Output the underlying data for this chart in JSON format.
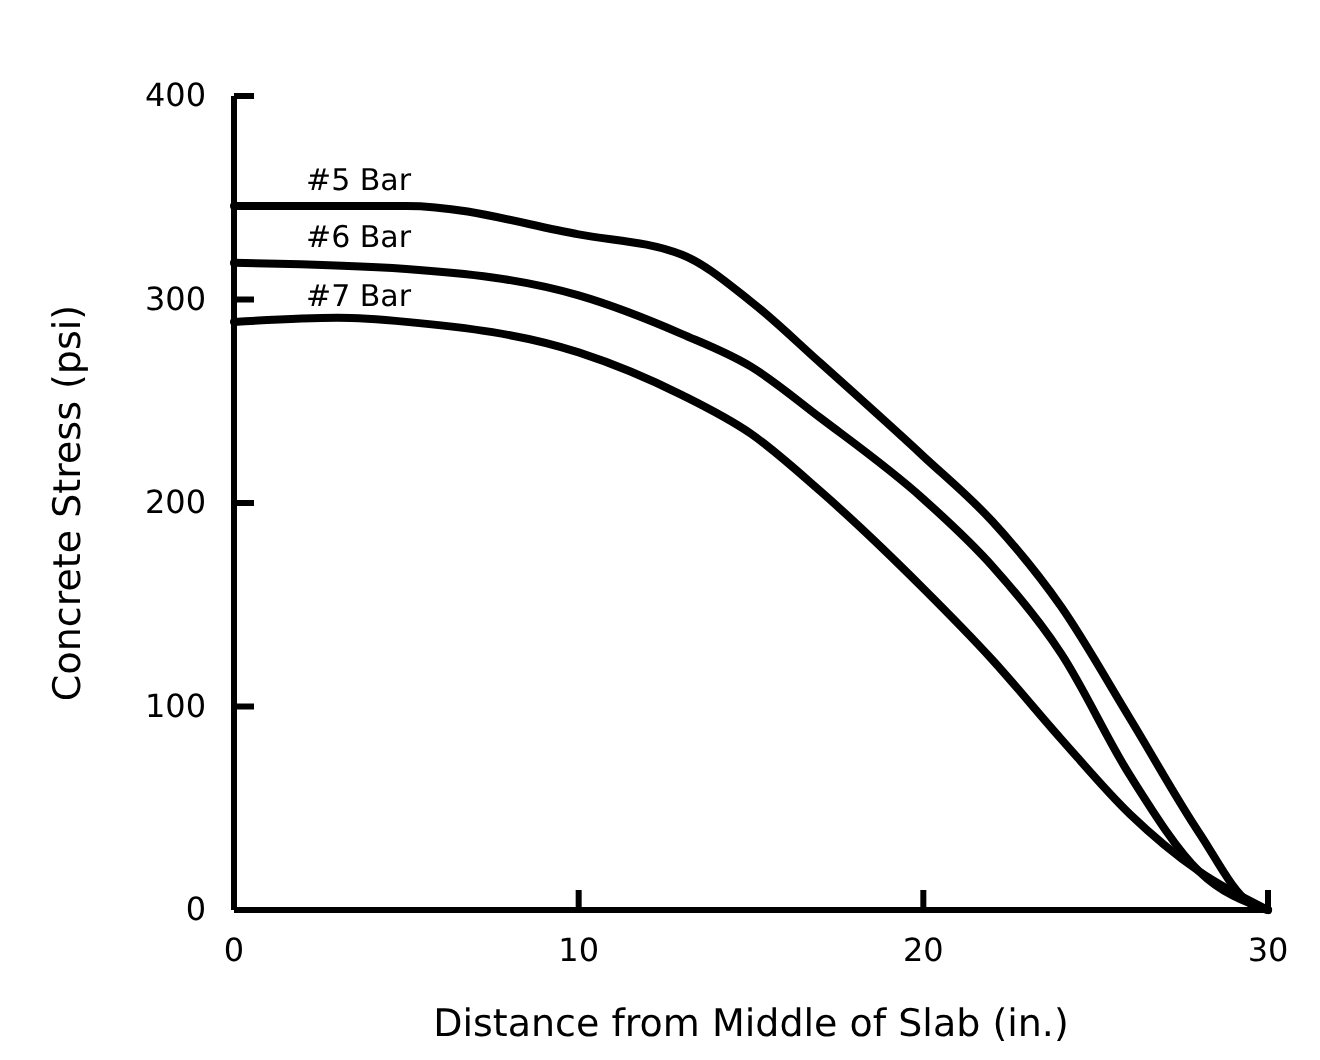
{
  "chart_data": {
    "type": "line",
    "xlabel": "Distance from Middle of Slab (in.)",
    "ylabel": "Concrete Stress (psi)",
    "xlim": [
      0,
      30
    ],
    "xticks": [
      0,
      10,
      20,
      30
    ],
    "ylim": [
      0,
      400
    ],
    "yticks": [
      0,
      100,
      200,
      300,
      400
    ],
    "grid": false,
    "legend": false,
    "marker": "none",
    "line_style": "solid",
    "series": [
      {
        "name": "#5 Bar",
        "color": "#000000",
        "x": [
          0,
          5,
          10,
          13,
          15,
          17,
          20,
          22,
          24,
          26,
          28,
          29.5,
          30
        ],
        "values": [
          346,
          346,
          332,
          322,
          299,
          269,
          223,
          191,
          149,
          94,
          38,
          3,
          0
        ]
      },
      {
        "name": "#6 Bar",
        "color": "#000000",
        "x": [
          0,
          5,
          10,
          13,
          15,
          17,
          20,
          22,
          24,
          26,
          28,
          30
        ],
        "values": [
          318,
          315,
          302,
          283,
          267,
          242,
          202,
          169,
          126,
          66,
          19,
          0
        ]
      },
      {
        "name": "#7 Bar",
        "color": "#000000",
        "x": [
          0,
          3,
          5,
          10,
          13,
          15,
          17,
          20,
          22,
          24,
          26,
          28,
          30
        ],
        "values": [
          289,
          291,
          289,
          274,
          253,
          234,
          206,
          158,
          123,
          84,
          47,
          19,
          0
        ]
      }
    ]
  }
}
